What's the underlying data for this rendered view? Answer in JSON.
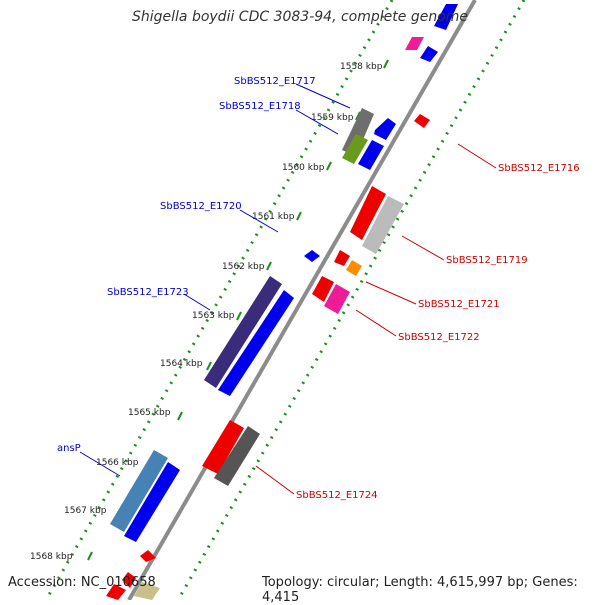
{
  "title": "Shigella boydii CDC 3083-94, complete genome",
  "accession": "Accession: NC_010658",
  "topology": "Topology: circular; Length: 4,615,997 bp; Genes: 4,415",
  "colors": {
    "backbone": "#8c8c8c",
    "dots": "#1f8f1f",
    "forward_label": "#0000cc",
    "reverse_label": "#cc0000"
  },
  "kbp_ticks": [
    "1558 kbp",
    "1559 kbp",
    "1560 kbp",
    "1561 kbp",
    "1562 kbp",
    "1563 kbp",
    "1564 kbp",
    "1565 kbp",
    "1566 kbp",
    "1567 kbp",
    "1568 kbp"
  ],
  "genes_forward": [
    {
      "label": "SbBS512_E1717"
    },
    {
      "label": "SbBS512_E1718"
    },
    {
      "label": "SbBS512_E1720"
    },
    {
      "label": "SbBS512_E1723"
    },
    {
      "label": "ansP"
    }
  ],
  "genes_reverse": [
    {
      "label": "SbBS512_E1716"
    },
    {
      "label": "SbBS512_E1719"
    },
    {
      "label": "SbBS512_E1721"
    },
    {
      "label": "SbBS512_E1722"
    },
    {
      "label": "SbBS512_E1724"
    }
  ]
}
